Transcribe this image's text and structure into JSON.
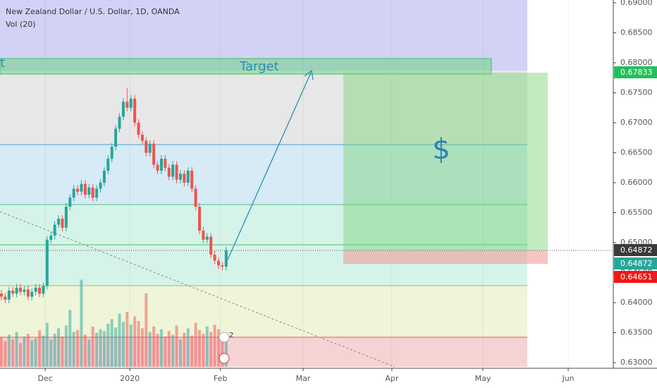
{
  "chart_data": {
    "type": "candlestick",
    "title": "New Zealand Dollar / U.S. Dollar, 1D, OANDA",
    "subtitle": "Vol (20)",
    "up_color": "#26a69a",
    "down_color": "#ef5350",
    "open": [
      0.6415,
      0.641,
      0.6405,
      0.642,
      0.6415,
      0.6425,
      0.6418,
      0.6422,
      0.641,
      0.6418,
      0.6425,
      0.6415,
      0.6428,
      0.6505,
      0.6512,
      0.653,
      0.654,
      0.6525,
      0.656,
      0.6575,
      0.659,
      0.6585,
      0.6598,
      0.658,
      0.6592,
      0.6575,
      0.659,
      0.66,
      0.662,
      0.664,
      0.666,
      0.669,
      0.671,
      0.6735,
      0.6725,
      0.674,
      0.67,
      0.668,
      0.667,
      0.665,
      0.6665,
      0.663,
      0.662,
      0.664,
      0.6625,
      0.661,
      0.663,
      0.6605,
      0.6615,
      0.66,
      0.662,
      0.659,
      0.656,
      0.652,
      0.6505,
      0.651,
      0.648,
      0.647,
      0.6462,
      0.646
    ],
    "high": [
      0.6421,
      0.6416,
      0.6426,
      0.6426,
      0.6431,
      0.6431,
      0.6428,
      0.6428,
      0.6424,
      0.6431,
      0.6431,
      0.6434,
      0.6511,
      0.6518,
      0.6536,
      0.6546,
      0.6546,
      0.6566,
      0.6581,
      0.6596,
      0.6596,
      0.6604,
      0.6604,
      0.6598,
      0.6598,
      0.6596,
      0.6606,
      0.6626,
      0.6646,
      0.6666,
      0.6696,
      0.6716,
      0.6741,
      0.6758,
      0.6746,
      0.6746,
      0.6706,
      0.6686,
      0.6676,
      0.6671,
      0.6671,
      0.6636,
      0.6646,
      0.6646,
      0.6631,
      0.6636,
      0.6636,
      0.6621,
      0.6621,
      0.6626,
      0.6626,
      0.6596,
      0.6566,
      0.6526,
      0.6516,
      0.6516,
      0.6486,
      0.6476,
      0.6468,
      0.6493
    ],
    "low": [
      0.6404,
      0.6399,
      0.6399,
      0.6409,
      0.6409,
      0.6412,
      0.6412,
      0.6404,
      0.6404,
      0.6412,
      0.6409,
      0.6409,
      0.6422,
      0.6499,
      0.6506,
      0.6524,
      0.6519,
      0.6519,
      0.6554,
      0.6569,
      0.6579,
      0.6579,
      0.6574,
      0.6574,
      0.6569,
      0.6569,
      0.6584,
      0.6594,
      0.6614,
      0.6634,
      0.6654,
      0.6684,
      0.6704,
      0.6719,
      0.6719,
      0.6694,
      0.6674,
      0.6664,
      0.6644,
      0.6644,
      0.6624,
      0.6614,
      0.6614,
      0.6619,
      0.6604,
      0.6604,
      0.6599,
      0.6599,
      0.6594,
      0.6594,
      0.6584,
      0.6554,
      0.6514,
      0.6499,
      0.6499,
      0.6474,
      0.6464,
      0.6456,
      0.6454,
      0.6454
    ],
    "close": [
      0.641,
      0.6405,
      0.642,
      0.6415,
      0.6425,
      0.6418,
      0.6422,
      0.641,
      0.6418,
      0.6425,
      0.6415,
      0.6428,
      0.6505,
      0.6512,
      0.653,
      0.654,
      0.6525,
      0.656,
      0.6575,
      0.659,
      0.6585,
      0.6598,
      0.658,
      0.6592,
      0.6575,
      0.659,
      0.66,
      0.662,
      0.664,
      0.666,
      0.669,
      0.671,
      0.6735,
      0.6725,
      0.674,
      0.67,
      0.668,
      0.667,
      0.665,
      0.6665,
      0.663,
      0.662,
      0.664,
      0.6625,
      0.661,
      0.663,
      0.6605,
      0.6615,
      0.66,
      0.662,
      0.659,
      0.656,
      0.652,
      0.6505,
      0.651,
      0.648,
      0.647,
      0.6462,
      0.646,
      0.64872
    ],
    "volume": [
      32,
      28,
      35,
      30,
      38,
      26,
      33,
      36,
      29,
      31,
      40,
      34,
      48,
      30,
      36,
      42,
      33,
      45,
      62,
      38,
      40,
      95,
      35,
      30,
      44,
      37,
      41,
      39,
      47,
      52,
      43,
      58,
      49,
      60,
      46,
      55,
      50,
      42,
      80,
      38,
      44,
      36,
      41,
      33,
      39,
      35,
      45,
      30,
      37,
      42,
      34,
      48,
      40,
      36,
      44,
      38,
      46,
      41,
      35,
      30
    ],
    "vlim": [
      0,
      100
    ],
    "xlim": [
      0,
      161
    ],
    "xticks": [
      {
        "value": 11.5,
        "label": "Dec"
      },
      {
        "value": 33.7,
        "label": "2020"
      },
      {
        "value": 57.5,
        "label": "Feb"
      },
      {
        "value": 79.2,
        "label": "Mar"
      },
      {
        "value": 102.5,
        "label": "Apr"
      },
      {
        "value": 126.4,
        "label": "May"
      },
      {
        "value": 148.8,
        "label": "Jun"
      }
    ],
    "ylim": [
      0.63,
      0.69
    ],
    "yticks": [
      {
        "value": 0.69,
        "label": "0.69000"
      },
      {
        "value": 0.685,
        "label": "0.68500"
      },
      {
        "value": 0.68,
        "label": "0.68000"
      },
      {
        "value": 0.675,
        "label": "0.67500"
      },
      {
        "value": 0.67,
        "label": "0.67000"
      },
      {
        "value": 0.665,
        "label": "0.66500"
      },
      {
        "value": 0.66,
        "label": "0.66000"
      },
      {
        "value": 0.655,
        "label": "0.65500"
      },
      {
        "value": 0.65,
        "label": "0.65000"
      },
      {
        "value": 0.645,
        "label": "0.64500"
      },
      {
        "value": 0.64,
        "label": "0.64000"
      },
      {
        "value": 0.635,
        "label": "0.63500"
      },
      {
        "value": 0.63,
        "label": "0.63000"
      }
    ],
    "price_labels": [
      0.67833,
      0.64872,
      0.64872,
      0.64651
    ],
    "annotations": [
      "Target",
      "$",
      "t",
      "2"
    ]
  }
}
